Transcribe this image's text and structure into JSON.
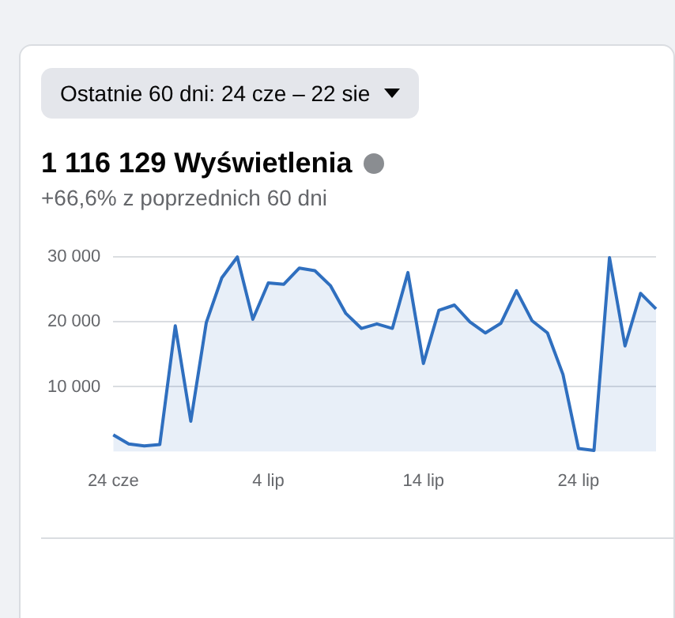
{
  "chart_data": {
    "type": "area",
    "title": "1 116 129 Wyświetlenia",
    "subtitle": "+66,6% z poprzednich 60 dni",
    "annotations": [
      "Ostatnie 60 dni: 24 cze – 22 sie"
    ],
    "categories": [
      "24 cze",
      null,
      null,
      null,
      null,
      null,
      null,
      null,
      null,
      null,
      "4 lip",
      null,
      null,
      null,
      null,
      null,
      null,
      null,
      null,
      null,
      "14 lip",
      null,
      null,
      null,
      null,
      null,
      null,
      null,
      null,
      null,
      "24 lip",
      null,
      null,
      null,
      null,
      null
    ],
    "series": [
      {
        "color": "#2f6fbf",
        "values": [
          2600,
          1200,
          900,
          1100,
          19400,
          4700,
          19900,
          26800,
          30000,
          20400,
          26000,
          25800,
          28300,
          27900,
          25600,
          21300,
          19000,
          19700,
          19000,
          27600,
          13600,
          21800,
          22600,
          20000,
          18300,
          19800,
          24800,
          20200,
          18300,
          11900,
          500,
          200,
          29900,
          16300,
          24400,
          22000
        ]
      }
    ],
    "ylim": [
      0,
      30000
    ],
    "yticks": [
      {
        "value": 10000,
        "label": "10 000"
      },
      {
        "value": 20000,
        "label": "20 000"
      },
      {
        "value": 30000,
        "label": "30 000"
      }
    ],
    "grid": "y",
    "legend": false,
    "marker": "none",
    "line_style": "solid"
  }
}
